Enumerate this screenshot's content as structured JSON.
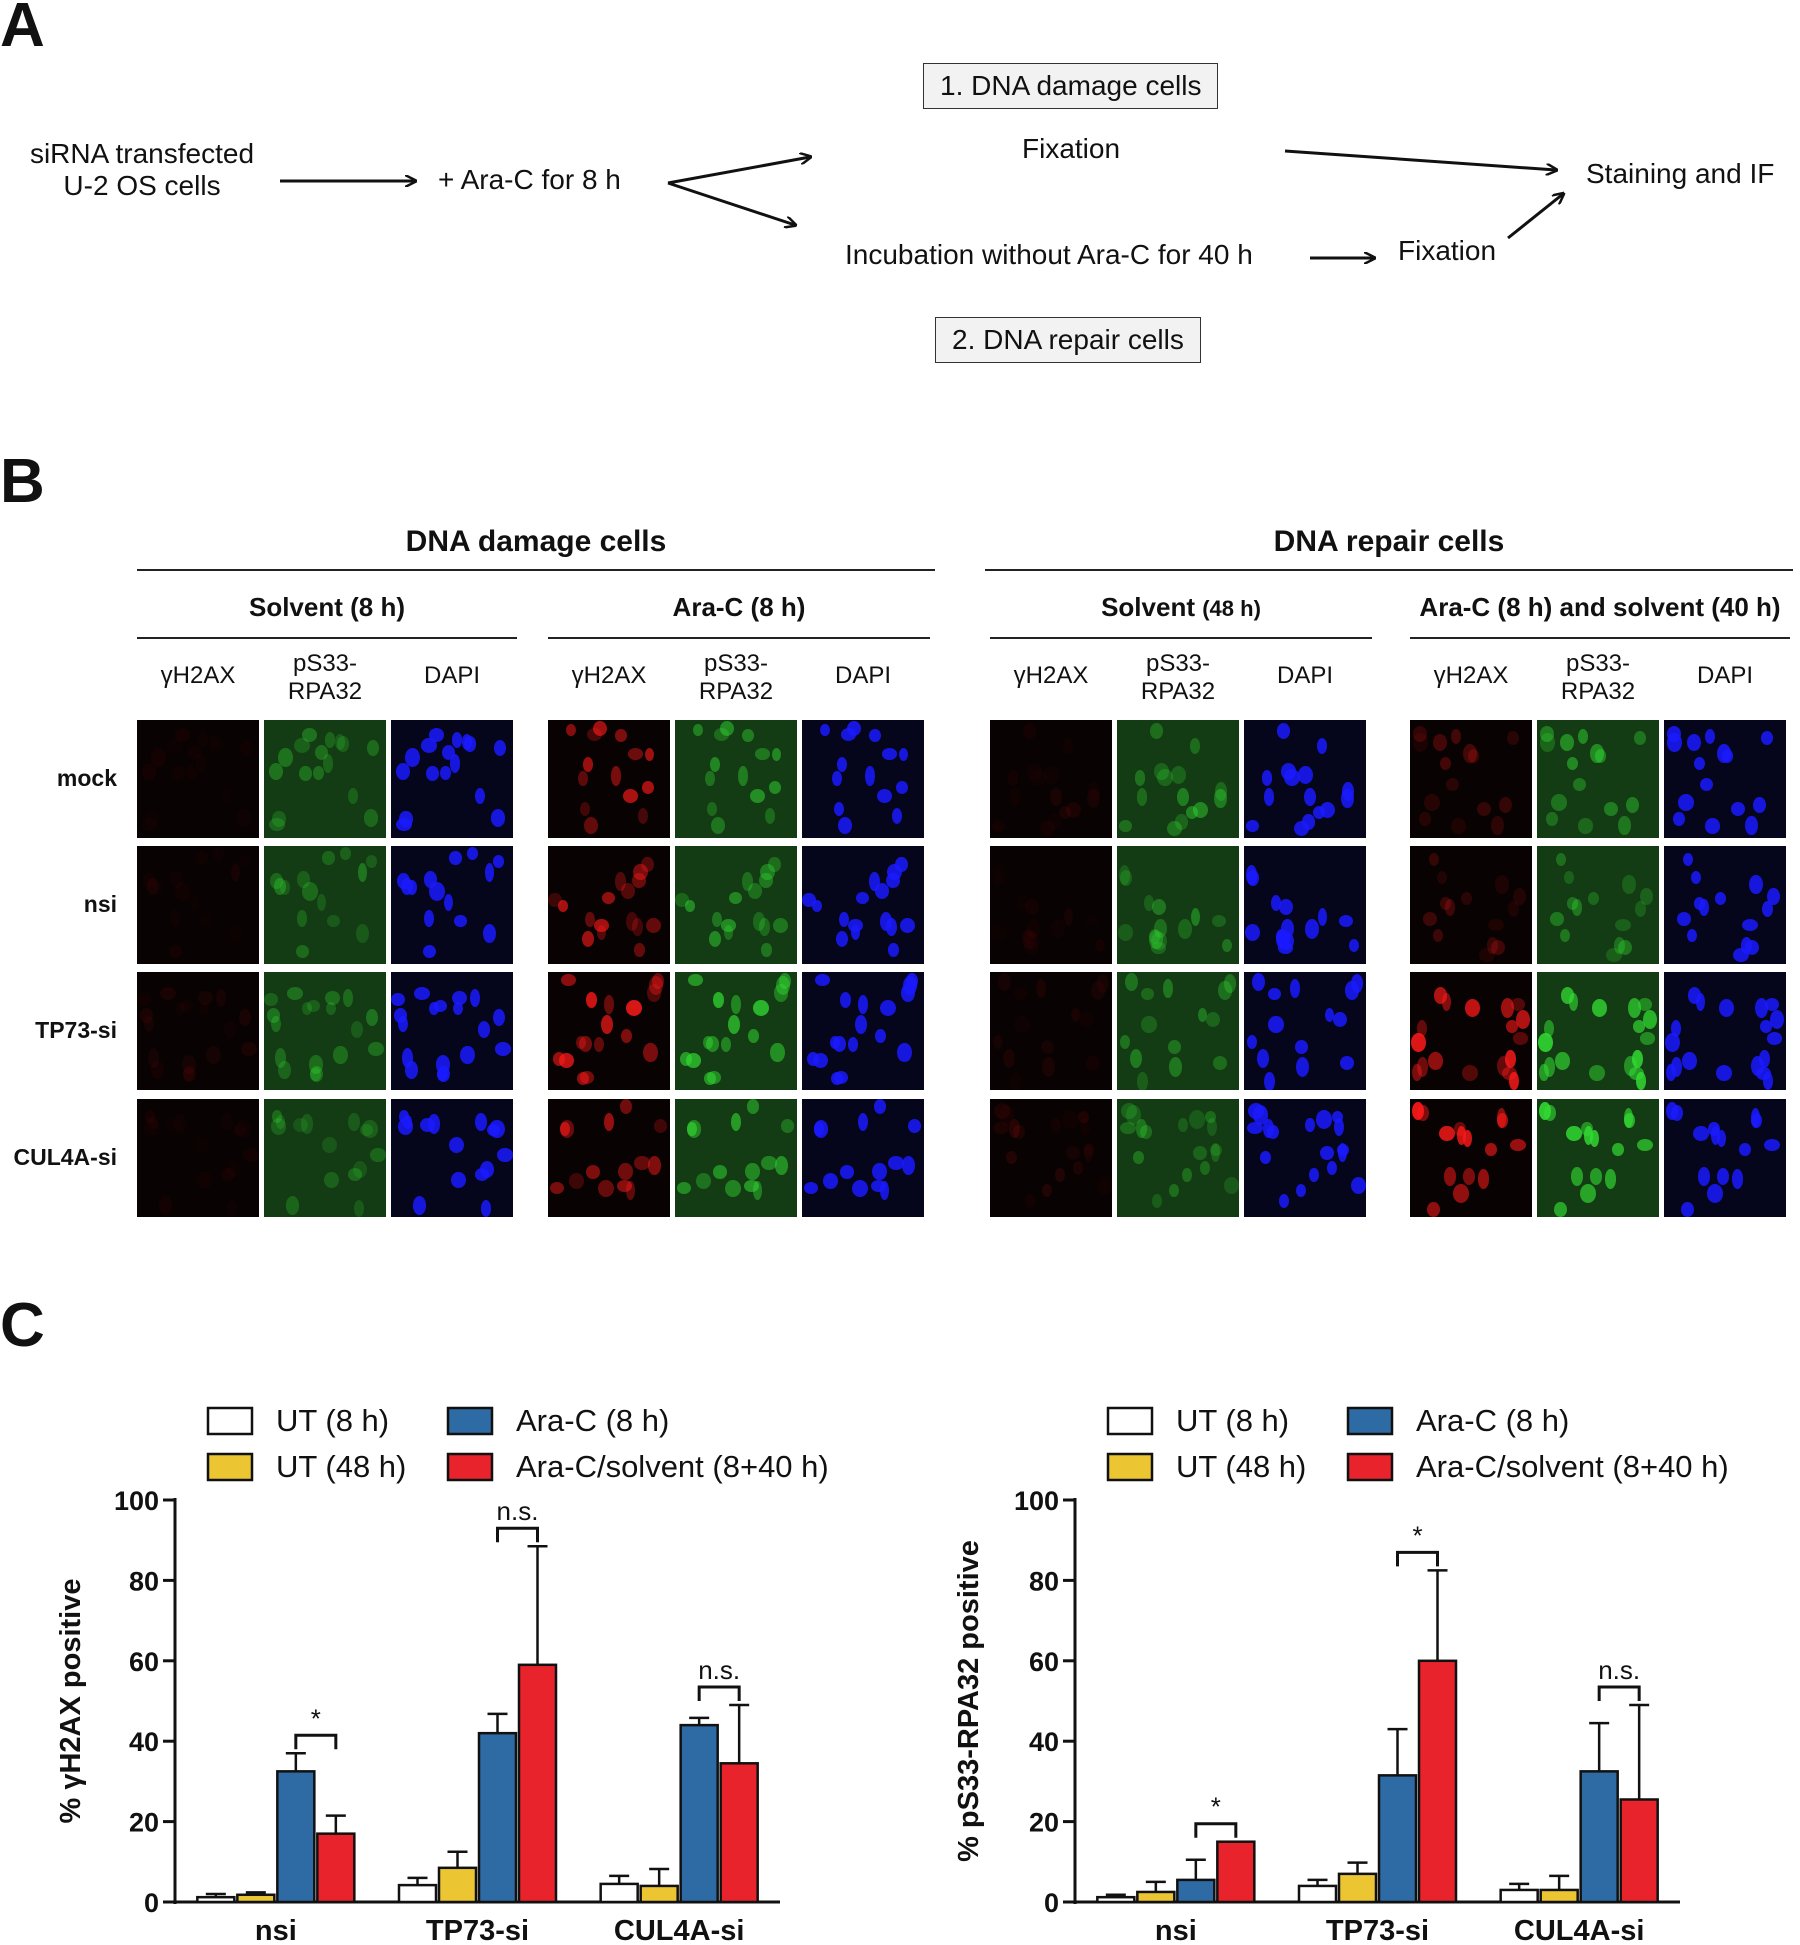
{
  "panels": {
    "a": "A",
    "b": "B",
    "c": "C"
  },
  "flow": {
    "start_line1": "siRNA transfected",
    "start_line2": "U-2 OS cells",
    "treat": "+ Ara-C for 8 h",
    "fix1": "Fixation",
    "incubate": "Incubation without Ara-C for 40 h",
    "fix2": "Fixation",
    "end": "Staining and IF",
    "box1": "1. DNA damage cells",
    "box2": "2. DNA repair cells"
  },
  "micrographs": {
    "group_titles": [
      "DNA damage cells",
      "DNA repair cells"
    ],
    "conditions": [
      {
        "main": "Solvent (8 h)",
        "suffix": ""
      },
      {
        "main": "Ara-C (8 h)",
        "suffix": ""
      },
      {
        "main": "Solvent ",
        "suffix": "(48 h)"
      },
      {
        "main": "Ara-C (8 h) and solvent (40 h)",
        "suffix": ""
      }
    ],
    "channels": {
      "ch1": "γH2AX",
      "ch2_l1": "pS33-",
      "ch2_l2": "RPA32",
      "ch3": "DAPI"
    },
    "rows": [
      "mock",
      "nsi",
      "TP73-si",
      "CUL4A-si"
    ],
    "colors": {
      "red": "#ff1a1a",
      "green": "#33dd33",
      "blue": "#1a1aff"
    }
  },
  "legend": [
    "UT (8 h)",
    "UT (48 h)",
    "Ara-C (8 h)",
    "Ara-C/solvent (8+40 h)"
  ],
  "chart_data": [
    {
      "type": "bar",
      "ylabel": "% γH2AX positive",
      "ylim": [
        0,
        100
      ],
      "yticks": [
        0,
        20,
        40,
        60,
        80,
        100
      ],
      "categories": [
        "nsi",
        "TP73-si",
        "CUL4A-si"
      ],
      "series": [
        {
          "name": "UT (8 h)",
          "color": "#ffffff",
          "values": [
            1.2,
            4.2,
            4.5
          ],
          "errors": [
            0.8,
            1.8,
            2.0
          ]
        },
        {
          "name": "UT (48 h)",
          "color": "#ecc632",
          "values": [
            1.8,
            8.5,
            4.0
          ],
          "errors": [
            0.6,
            4.0,
            4.2
          ]
        },
        {
          "name": "Ara-C (8 h)",
          "color": "#2e6aa4",
          "values": [
            32.5,
            42.0,
            44.0
          ],
          "errors": [
            4.5,
            4.8,
            1.8
          ]
        },
        {
          "name": "Ara-C/solvent (8+40 h)",
          "color": "#e8232c",
          "values": [
            17.0,
            59.0,
            34.5
          ],
          "errors": [
            4.5,
            29.5,
            14.5
          ]
        }
      ],
      "significance": [
        {
          "category": "nsi",
          "label": "*"
        },
        {
          "category": "TP73-si",
          "label": "n.s."
        },
        {
          "category": "CUL4A-si",
          "label": "n.s."
        }
      ]
    },
    {
      "type": "bar",
      "ylabel": "% pS33-RPA32 positive",
      "ylim": [
        0,
        100
      ],
      "yticks": [
        0,
        20,
        40,
        60,
        80,
        100
      ],
      "categories": [
        "nsi",
        "TP73-si",
        "CUL4A-si"
      ],
      "series": [
        {
          "name": "UT (8 h)",
          "color": "#ffffff",
          "values": [
            1.2,
            4.0,
            3.0
          ],
          "errors": [
            0.6,
            1.5,
            1.5
          ]
        },
        {
          "name": "UT (48 h)",
          "color": "#ecc632",
          "values": [
            2.5,
            7.0,
            3.0
          ],
          "errors": [
            2.5,
            2.8,
            3.5
          ]
        },
        {
          "name": "Ara-C (8 h)",
          "color": "#2e6aa4",
          "values": [
            5.5,
            31.5,
            32.5
          ],
          "errors": [
            5.0,
            11.5,
            12.0
          ]
        },
        {
          "name": "Ara-C/solvent (8+40 h)",
          "color": "#e8232c",
          "values": [
            15.0,
            60.0,
            25.5
          ],
          "errors": [
            0.0,
            22.5,
            23.5
          ]
        }
      ],
      "significance": [
        {
          "category": "nsi",
          "label": "*"
        },
        {
          "category": "TP73-si",
          "label": "*"
        },
        {
          "category": "CUL4A-si",
          "label": "n.s."
        }
      ]
    }
  ]
}
